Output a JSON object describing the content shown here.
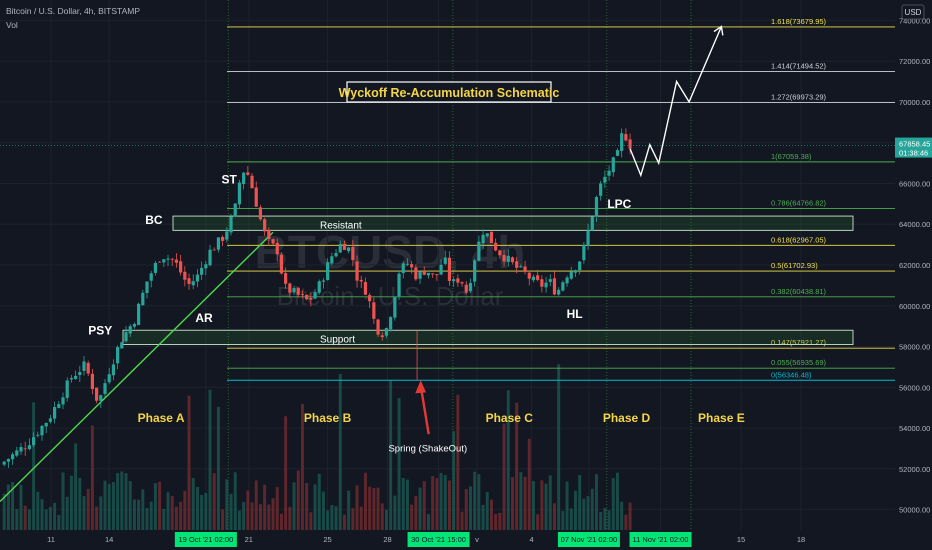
{
  "header": {
    "symbol_line": "Bitcoin / U.S. Dollar, 4h, BITSTAMP",
    "vol_label": "Vol",
    "currency_badge": "USD",
    "watermark_symbol": "BTCUSD, 4h",
    "watermark_name": "Bitcoin · U.S. Dollar"
  },
  "title": "Wyckoff Re-Accumulation Schematic",
  "colors": {
    "background": "#131722",
    "up": "#26a69a",
    "down": "#ef5350",
    "fib_yellow": "#f0e04a",
    "fib_green": "#4caf50",
    "fib_teal": "#00bcd4",
    "fib_white": "#d1d4dc",
    "trendline": "#4cd94c",
    "arrow_red": "#e53935",
    "phase_yellow": "#f5d547",
    "label_green": "#00e676"
  },
  "chart_data": {
    "type": "candlestick",
    "y_axis": {
      "min": 49000,
      "max": 75000,
      "ticks": [
        "74000.00",
        "72000.00",
        "70000.00",
        "68000.00",
        "66000.00",
        "64000.00",
        "62000.00",
        "60000.00",
        "58000.00",
        "56000.00",
        "54000.00",
        "52000.00",
        "50000.00"
      ],
      "tick_values": [
        74000,
        72000,
        70000,
        68000,
        66000,
        64000,
        62000,
        60000,
        58000,
        56000,
        54000,
        52000,
        50000
      ]
    },
    "x_axis": {
      "labels": [
        {
          "text": "11",
          "t": 0.057
        },
        {
          "text": "14",
          "t": 0.122
        },
        {
          "text": "19 Oct '21  02:00",
          "t": 0.23,
          "highlight": true
        },
        {
          "text": "21",
          "t": 0.278
        },
        {
          "text": "25",
          "t": 0.366
        },
        {
          "text": "28",
          "t": 0.433
        },
        {
          "text": "30 Oct '21  15:00",
          "t": 0.49,
          "highlight": true
        },
        {
          "text": "v",
          "t": 0.533
        },
        {
          "text": "4",
          "t": 0.594
        },
        {
          "text": "07 Nov '21  02:00",
          "t": 0.658,
          "highlight": true
        },
        {
          "text": "11 Nov '21  02:00",
          "t": 0.738,
          "highlight": true
        },
        {
          "text": "15",
          "t": 0.828
        },
        {
          "text": "18",
          "t": 0.895
        }
      ]
    },
    "price_path": [
      [
        0.0,
        52200
      ],
      [
        0.03,
        53200
      ],
      [
        0.055,
        54500
      ],
      [
        0.08,
        56500
      ],
      [
        0.095,
        57100
      ],
      [
        0.11,
        55200
      ],
      [
        0.12,
        56600
      ],
      [
        0.135,
        58300
      ],
      [
        0.15,
        59300
      ],
      [
        0.165,
        61300
      ],
      [
        0.18,
        62500
      ],
      [
        0.195,
        62200
      ],
      [
        0.21,
        61000
      ],
      [
        0.22,
        61400
      ],
      [
        0.235,
        62700
      ],
      [
        0.25,
        63400
      ],
      [
        0.262,
        64600
      ],
      [
        0.27,
        66700
      ],
      [
        0.278,
        66400
      ],
      [
        0.286,
        65100
      ],
      [
        0.294,
        63700
      ],
      [
        0.3,
        63100
      ],
      [
        0.31,
        62700
      ],
      [
        0.318,
        60900
      ],
      [
        0.33,
        60600
      ],
      [
        0.345,
        60200
      ],
      [
        0.358,
        61100
      ],
      [
        0.37,
        62400
      ],
      [
        0.382,
        63100
      ],
      [
        0.392,
        62700
      ],
      [
        0.4,
        61200
      ],
      [
        0.41,
        60700
      ],
      [
        0.42,
        58900
      ],
      [
        0.43,
        58600
      ],
      [
        0.438,
        59900
      ],
      [
        0.446,
        61700
      ],
      [
        0.456,
        62100
      ],
      [
        0.466,
        61400
      ],
      [
        0.476,
        61800
      ],
      [
        0.486,
        61300
      ],
      [
        0.496,
        62400
      ],
      [
        0.504,
        61000
      ],
      [
        0.514,
        61400
      ],
      [
        0.522,
        60600
      ],
      [
        0.532,
        62700
      ],
      [
        0.54,
        63700
      ],
      [
        0.546,
        63400
      ],
      [
        0.556,
        62700
      ],
      [
        0.566,
        62300
      ],
      [
        0.576,
        61900
      ],
      [
        0.586,
        61600
      ],
      [
        0.596,
        61200
      ],
      [
        0.606,
        61000
      ],
      [
        0.614,
        61200
      ],
      [
        0.622,
        60600
      ],
      [
        0.632,
        61500
      ],
      [
        0.642,
        61900
      ],
      [
        0.65,
        62400
      ],
      [
        0.658,
        63800
      ],
      [
        0.664,
        64900
      ],
      [
        0.67,
        65800
      ],
      [
        0.676,
        66300
      ],
      [
        0.682,
        66800
      ],
      [
        0.69,
        67400
      ],
      [
        0.696,
        68600
      ],
      [
        0.704,
        67900
      ]
    ],
    "projection": [
      [
        0.704,
        67700
      ],
      [
        0.716,
        66400
      ],
      [
        0.726,
        67900
      ],
      [
        0.736,
        67000
      ],
      [
        0.756,
        71000
      ],
      [
        0.77,
        70000
      ],
      [
        0.806,
        73700
      ]
    ],
    "fib_levels": [
      {
        "label": "1.618(73679.95)",
        "value": 73680,
        "color": "yellow"
      },
      {
        "label": "1.414(71494.52)",
        "value": 71495,
        "color": "white"
      },
      {
        "label": "1.272(69973.29)",
        "value": 69973,
        "color": "white"
      },
      {
        "label": "1(67059.38)",
        "value": 67059,
        "color": "green"
      },
      {
        "label": "0.786(64766.82)",
        "value": 64767,
        "color": "green"
      },
      {
        "label": "0.618(62967.05)",
        "value": 62967,
        "color": "yellow"
      },
      {
        "label": "0.5(61702.93)",
        "value": 61703,
        "color": "yellow"
      },
      {
        "label": "0.382(60438.81)",
        "value": 60439,
        "color": "green"
      },
      {
        "label": "0.147(57921.27)",
        "value": 57921,
        "color": "yellow"
      },
      {
        "label": "0.055(56935.69)",
        "value": 56936,
        "color": "green"
      },
      {
        "label": "0(56346.48)",
        "value": 56346,
        "color": "teal"
      }
    ],
    "zones": [
      {
        "label": "Resistant",
        "low": 63700,
        "high": 64400
      },
      {
        "label": "Support",
        "low": 58100,
        "high": 58800
      }
    ],
    "current_price": {
      "value": 67858.45,
      "label": "67858.45",
      "countdown": "01:38:46"
    },
    "wyckoff_labels": [
      {
        "text": "PSY",
        "t": 0.112,
        "price": 58600
      },
      {
        "text": "BC",
        "t": 0.172,
        "price": 64000
      },
      {
        "text": "AR",
        "t": 0.228,
        "price": 59200
      },
      {
        "text": "ST",
        "t": 0.256,
        "price": 66000
      },
      {
        "text": "HL",
        "t": 0.642,
        "price": 59400
      },
      {
        "text": "LPC",
        "t": 0.692,
        "price": 64800
      }
    ],
    "phases": [
      {
        "text": "Phase A",
        "t": 0.18
      },
      {
        "text": "Phase B",
        "t": 0.366
      },
      {
        "text": "Phase C",
        "t": 0.569
      },
      {
        "text": "Phase D",
        "t": 0.7
      },
      {
        "text": "Phase E",
        "t": 0.806
      }
    ],
    "spring_label": "Spring (ShakeOut)"
  }
}
